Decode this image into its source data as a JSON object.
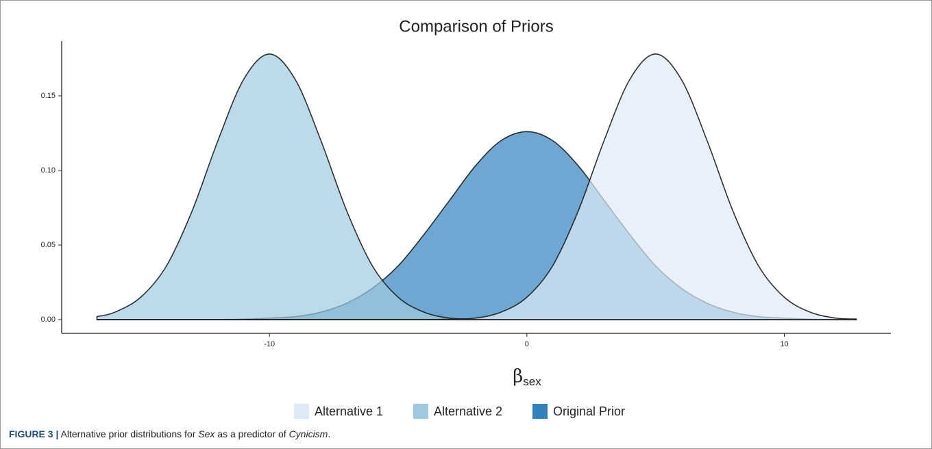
{
  "chart_data": {
    "type": "density",
    "title": "Comparison of Priors",
    "x_label": {
      "symbol": "β",
      "subscript": "sex"
    },
    "x": [
      -16.7,
      -16,
      -15,
      -14,
      -13,
      -12,
      -11,
      -10,
      -9,
      -8,
      -7,
      -6,
      -5,
      -4,
      -3,
      -2,
      -1,
      0,
      1,
      2,
      3,
      4,
      5,
      6,
      7,
      8,
      9,
      10,
      11,
      12,
      12.8
    ],
    "series": [
      {
        "name": "Alternative 1",
        "color": "#deebf7",
        "values": [
          0,
          0,
          0,
          0,
          0,
          0,
          0,
          0,
          0,
          0,
          0,
          0,
          0,
          0,
          0.0003,
          0.001,
          0.005,
          0.015,
          0.036,
          0.073,
          0.12,
          0.161,
          0.178,
          0.161,
          0.12,
          0.073,
          0.036,
          0.015,
          0.005,
          0.001,
          0.0004
        ]
      },
      {
        "name": "Alternative 2",
        "color": "#9ecae1",
        "values": [
          0.002,
          0.005,
          0.015,
          0.036,
          0.073,
          0.12,
          0.161,
          0.178,
          0.161,
          0.12,
          0.073,
          0.036,
          0.015,
          0.005,
          0.001,
          0.0003,
          0,
          0,
          0,
          0,
          0,
          0,
          0,
          0,
          0,
          0,
          0,
          0,
          0,
          0,
          0
        ]
      },
      {
        "name": "Original Prior",
        "color": "#3182bd",
        "values": [
          0,
          0,
          0,
          0,
          0,
          0,
          0.0003,
          0.001,
          0.002,
          0.005,
          0.011,
          0.021,
          0.036,
          0.057,
          0.08,
          0.103,
          0.12,
          0.126,
          0.12,
          0.103,
          0.08,
          0.057,
          0.036,
          0.021,
          0.011,
          0.005,
          0.002,
          0.001,
          0.0003,
          0.0001,
          0
        ]
      }
    ],
    "xlim": [
      -18.07,
      14.14
    ],
    "xticks": [
      -10,
      0,
      10
    ],
    "ylim": [
      -0.0092,
      0.1867
    ],
    "yticks": [
      {
        "value": 0,
        "label": "0.00"
      },
      {
        "value": 0.05,
        "label": "0.05"
      },
      {
        "value": 0.1,
        "label": "0.10"
      },
      {
        "value": 0.15,
        "label": "0.15"
      }
    ],
    "legend": "bottom",
    "caption": {
      "label": "FIGURE 3 |",
      "parts": [
        "Alternative prior distributions for ",
        "Sex",
        " as a predictor of ",
        "Cynicism",
        "."
      ]
    }
  }
}
